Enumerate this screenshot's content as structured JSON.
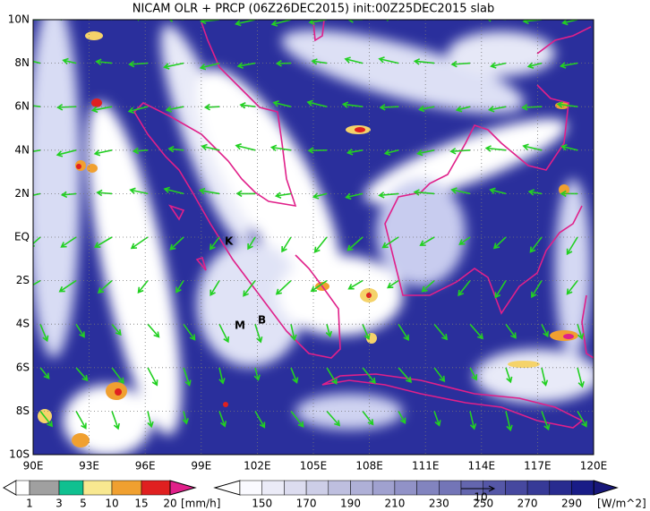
{
  "title": "NICAM OLR + PRCP (06Z26DEC2015) init:00Z25DEC2015 slab",
  "x_axis_labels": [
    "90E",
    "93E",
    "96E",
    "99E",
    "102E",
    "105E",
    "108E",
    "111E",
    "114E",
    "117E",
    "120E"
  ],
  "y_axis_labels": [
    "10N",
    "8N",
    "6N",
    "4N",
    "2N",
    "EQ",
    "2S",
    "4S",
    "6S",
    "8S",
    "10S"
  ],
  "place_markers": [
    "K",
    "M",
    "B"
  ],
  "precip_colorbar": {
    "labels": [
      "1",
      "3",
      "5",
      "10",
      "15",
      "20"
    ],
    "unit": "[mm/h]"
  },
  "olr_colorbar": {
    "labels": [
      "150",
      "170",
      "190",
      "210",
      "230",
      "250",
      "270",
      "290"
    ],
    "unit": "[W/m^2]"
  },
  "wind_reference_label": "10"
}
